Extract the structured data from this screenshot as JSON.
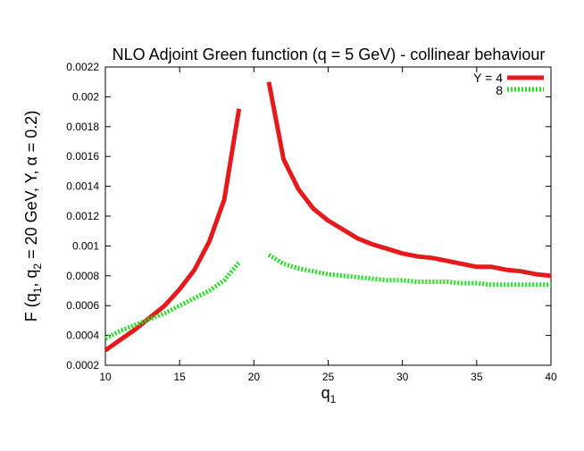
{
  "chart_data": {
    "type": "line",
    "title": "NLO Adjoint Green function (q = 5 GeV) - collinear behaviour",
    "xlabel": "q",
    "xlabel_sub": "1",
    "ylabel": "F (q",
    "ylabel_sub1": "1",
    "ylabel_mid": ", q",
    "ylabel_sub2": "2",
    "ylabel_rest": " = 20 GeV, Y, α = 0.2)",
    "xlim": [
      10,
      40
    ],
    "ylim": [
      0.0002,
      0.0022
    ],
    "xticks": [
      "10",
      "15",
      "20",
      "25",
      "30",
      "35",
      "40"
    ],
    "yticks": [
      "0.0002",
      "0.0004",
      "0.0006",
      "0.0008",
      "0.001",
      "0.0012",
      "0.0014",
      "0.0016",
      "0.0018",
      "0.002",
      "0.0022"
    ],
    "grid": false,
    "legend_position": "top-right",
    "series": [
      {
        "name": "Y = 4",
        "color": "#e41a1c",
        "style": "solid",
        "segments": [
          [
            [
              10,
              0.0003
            ],
            [
              11,
              0.00037
            ],
            [
              12,
              0.00044
            ],
            [
              13,
              0.00052
            ],
            [
              14,
              0.0006
            ],
            [
              15,
              0.00071
            ],
            [
              16,
              0.00084
            ],
            [
              17,
              0.00103
            ],
            [
              18,
              0.00131
            ],
            [
              19,
              0.00192
            ]
          ],
          [
            [
              21,
              0.0021
            ],
            [
              22,
              0.00158
            ],
            [
              23,
              0.00138
            ],
            [
              24,
              0.00125
            ],
            [
              25,
              0.00117
            ],
            [
              26,
              0.00111
            ],
            [
              27,
              0.00105
            ],
            [
              28,
              0.00101
            ],
            [
              29,
              0.00098
            ],
            [
              30,
              0.00095
            ],
            [
              31,
              0.00093
            ],
            [
              32,
              0.00092
            ],
            [
              33,
              0.0009
            ],
            [
              34,
              0.00088
            ],
            [
              35,
              0.00086
            ],
            [
              36,
              0.00086
            ],
            [
              37,
              0.00084
            ],
            [
              38,
              0.00083
            ],
            [
              39,
              0.00081
            ],
            [
              40,
              0.0008
            ]
          ]
        ]
      },
      {
        "name": "8",
        "color": "#22dd22",
        "style": "dotted",
        "segments": [
          [
            [
              10,
              0.00038
            ],
            [
              11,
              0.00043
            ],
            [
              12,
              0.00047
            ],
            [
              13,
              0.00051
            ],
            [
              14,
              0.00055
            ],
            [
              15,
              0.0006
            ],
            [
              16,
              0.00065
            ],
            [
              17,
              0.0007
            ],
            [
              18,
              0.00077
            ],
            [
              19,
              0.00089
            ]
          ],
          [
            [
              21,
              0.00094
            ],
            [
              22,
              0.00088
            ],
            [
              23,
              0.00085
            ],
            [
              24,
              0.00083
            ],
            [
              25,
              0.00081
            ],
            [
              26,
              0.0008
            ],
            [
              27,
              0.00079
            ],
            [
              28,
              0.00078
            ],
            [
              29,
              0.00077
            ],
            [
              30,
              0.00077
            ],
            [
              31,
              0.00076
            ],
            [
              32,
              0.00076
            ],
            [
              33,
              0.00076
            ],
            [
              34,
              0.00075
            ],
            [
              35,
              0.00075
            ],
            [
              36,
              0.00074
            ],
            [
              37,
              0.00074
            ],
            [
              38,
              0.00074
            ],
            [
              39,
              0.00074
            ],
            [
              40,
              0.00074
            ]
          ]
        ]
      }
    ]
  }
}
